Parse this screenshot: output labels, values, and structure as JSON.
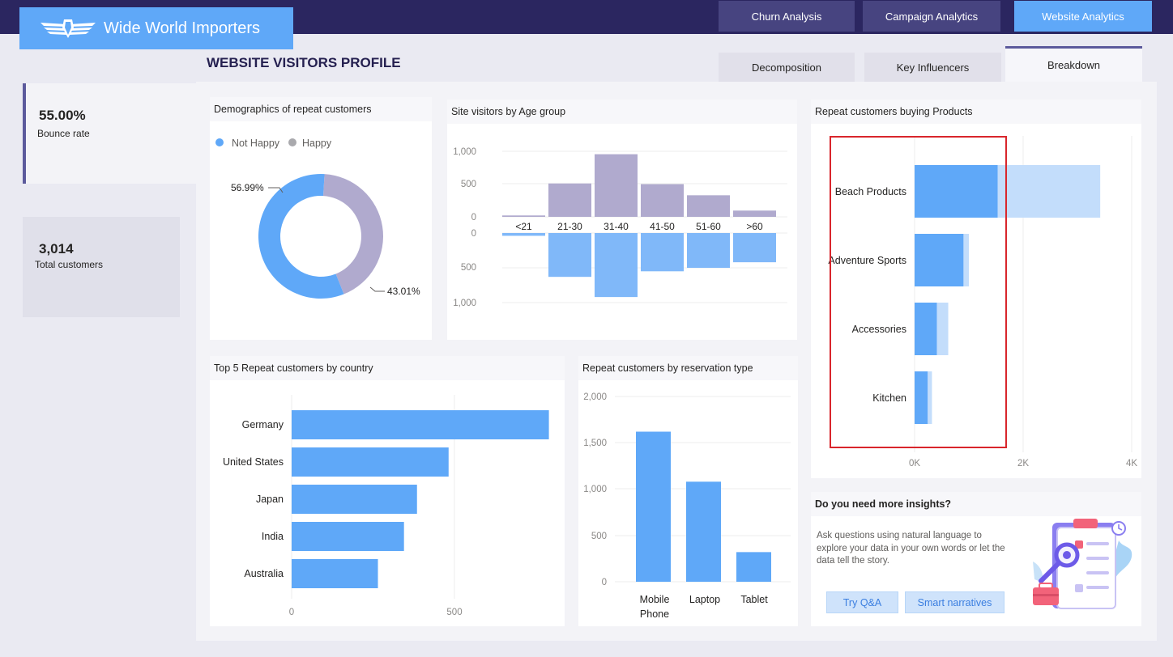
{
  "header": {
    "brand": "Wide World Importers",
    "nav": [
      "Churn Analysis",
      "Campaign Analytics",
      "Website Analytics"
    ],
    "active_nav": "Website Analytics"
  },
  "page": {
    "title": "WEBSITE VISITORS PROFILE",
    "subtabs": [
      "Decomposition",
      "Key Influencers",
      "Breakdown"
    ],
    "active_subtab": "Breakdown"
  },
  "kpis": {
    "bounce_rate": {
      "value": "55.00%",
      "label": "Bounce rate"
    },
    "total_customers": {
      "value": "3,014",
      "label": "Total customers"
    }
  },
  "colors": {
    "blue": "#5fa8f8",
    "light_blue": "#c3ddfb",
    "purple": "#b0aace",
    "highlight_red": "#d9262c"
  },
  "demographics": {
    "title": "Demographics of repeat customers",
    "legend": [
      "Not Happy",
      "Happy"
    ],
    "labels": [
      "56.99%",
      "43.01%"
    ]
  },
  "age_chart": {
    "title": "Site visitors by Age group",
    "top_ticks": [
      "1,000",
      "500",
      "0"
    ],
    "bottom_ticks": [
      "0",
      "500",
      "1,000"
    ]
  },
  "products_chart": {
    "title": "Repeat customers buying Products",
    "x_ticks": [
      "0K",
      "2K",
      "4K"
    ]
  },
  "country_chart": {
    "title": "Top 5 Repeat customers by country",
    "x_ticks": [
      "0",
      "500"
    ]
  },
  "reservation_chart": {
    "title": "Repeat customers by reservation type",
    "y_ticks": [
      "2,000",
      "1,500",
      "1,000",
      "500",
      "0"
    ],
    "categories": [
      [
        "Mobile",
        "Phone"
      ],
      [
        "Laptop"
      ],
      [
        "Tablet"
      ]
    ]
  },
  "insights": {
    "title": "Do you need more insights?",
    "text_lines": [
      "Ask questions using natural language to",
      "explore your data in your own words or let the",
      "data tell the story."
    ],
    "buttons": [
      "Try Q&A",
      "Smart narratives"
    ]
  },
  "chart_data": [
    {
      "type": "pie",
      "chart": "demographics",
      "title": "Demographics of repeat customers",
      "categories": [
        "Not Happy",
        "Happy"
      ],
      "values": [
        56.99,
        43.01
      ],
      "legend": "top-left"
    },
    {
      "type": "bar",
      "chart": "age_group",
      "title": "Site visitors by Age group",
      "categories": [
        "<21",
        "21-30",
        "31-40",
        "41-50",
        "51-60",
        ">60"
      ],
      "series": [
        {
          "values": [
            20,
            480,
            900,
            470,
            310,
            90
          ]
        },
        {
          "values": [
            40,
            630,
            920,
            550,
            500,
            420
          ]
        }
      ],
      "ylim": [
        0,
        1000
      ],
      "grid": true
    },
    {
      "type": "bar",
      "chart": "products",
      "orientation": "horizontal",
      "title": "Repeat customers buying Products",
      "categories": [
        "Beach Products",
        "Adventure Sports",
        "Accessories",
        "Kitchen"
      ],
      "series": [
        {
          "values": [
            1530,
            900,
            410,
            240
          ]
        },
        {
          "values": [
            3420,
            1000,
            620,
            320
          ]
        }
      ],
      "xlim": [
        0,
        4000
      ],
      "grid": true
    },
    {
      "type": "bar",
      "chart": "country",
      "orientation": "horizontal",
      "title": "Top 5 Repeat customers by country",
      "categories": [
        "Germany",
        "United States",
        "Japan",
        "India",
        "Australia"
      ],
      "values": [
        790,
        482,
        385,
        345,
        265
      ],
      "xlim": [
        0,
        800
      ],
      "grid": true
    },
    {
      "type": "bar",
      "chart": "reservation",
      "title": "Repeat customers by reservation type",
      "categories": [
        "Mobile Phone",
        "Laptop",
        "Tablet"
      ],
      "values": [
        1620,
        1080,
        320
      ],
      "ylim": [
        0,
        2000
      ],
      "grid": true
    }
  ]
}
